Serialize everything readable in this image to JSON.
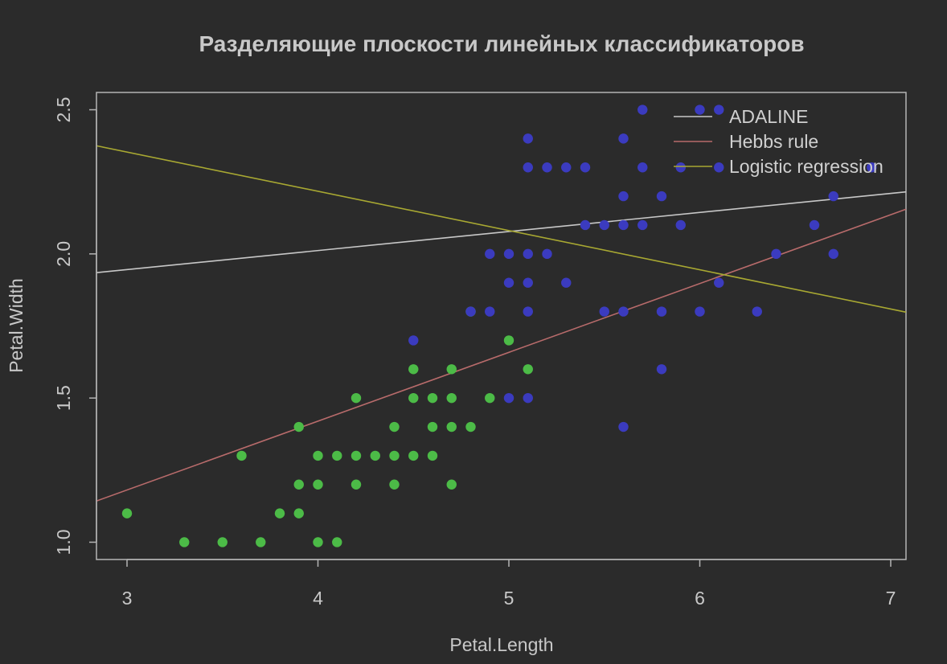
{
  "chart_data": {
    "type": "scatter",
    "title": "Разделяющие плоскости линейных классификаторов",
    "xlabel": "Petal.Length",
    "ylabel": "Petal.Width",
    "xlim": [
      2.84,
      7.08
    ],
    "ylim": [
      0.94,
      2.56
    ],
    "x_ticks": [
      "3",
      "4",
      "5",
      "6",
      "7"
    ],
    "y_ticks": [
      "1.0",
      "1.5",
      "2.0",
      "2.5"
    ],
    "grid": false,
    "legend_position": "top-right",
    "background": "#2b2b2b",
    "axis_color": "#b4b4b4",
    "series": [
      {
        "color": "#4cbb47",
        "points": [
          [
            3.0,
            1.1
          ],
          [
            3.3,
            1.0
          ],
          [
            3.5,
            1.0
          ],
          [
            3.6,
            1.3
          ],
          [
            3.7,
            1.0
          ],
          [
            3.8,
            1.1
          ],
          [
            3.9,
            1.4
          ],
          [
            3.9,
            1.2
          ],
          [
            3.9,
            1.1
          ],
          [
            4.0,
            1.3
          ],
          [
            4.0,
            1.2
          ],
          [
            4.0,
            1.0
          ],
          [
            4.1,
            1.3
          ],
          [
            4.1,
            1.0
          ],
          [
            4.2,
            1.5
          ],
          [
            4.2,
            1.3
          ],
          [
            4.2,
            1.2
          ],
          [
            4.3,
            1.3
          ],
          [
            4.4,
            1.4
          ],
          [
            4.4,
            1.3
          ],
          [
            4.4,
            1.2
          ],
          [
            4.5,
            1.6
          ],
          [
            4.5,
            1.5
          ],
          [
            4.5,
            1.3
          ],
          [
            4.6,
            1.5
          ],
          [
            4.6,
            1.4
          ],
          [
            4.6,
            1.3
          ],
          [
            4.7,
            1.6
          ],
          [
            4.7,
            1.5
          ],
          [
            4.7,
            1.4
          ],
          [
            4.7,
            1.2
          ],
          [
            4.8,
            1.8
          ],
          [
            4.8,
            1.4
          ],
          [
            4.9,
            1.5
          ],
          [
            5.0,
            1.7
          ],
          [
            5.1,
            1.6
          ]
        ]
      },
      {
        "color": "#3b3bbf",
        "points": [
          [
            4.5,
            1.7
          ],
          [
            4.8,
            1.8
          ],
          [
            4.9,
            2.0
          ],
          [
            4.9,
            1.8
          ],
          [
            5.0,
            2.0
          ],
          [
            5.0,
            1.9
          ],
          [
            5.0,
            1.5
          ],
          [
            5.1,
            2.4
          ],
          [
            5.1,
            2.3
          ],
          [
            5.1,
            2.0
          ],
          [
            5.1,
            1.9
          ],
          [
            5.1,
            1.8
          ],
          [
            5.1,
            1.5
          ],
          [
            5.2,
            2.3
          ],
          [
            5.2,
            2.0
          ],
          [
            5.3,
            2.3
          ],
          [
            5.3,
            1.9
          ],
          [
            5.4,
            2.3
          ],
          [
            5.4,
            2.1
          ],
          [
            5.5,
            2.1
          ],
          [
            5.5,
            1.8
          ],
          [
            5.6,
            2.4
          ],
          [
            5.6,
            2.2
          ],
          [
            5.6,
            2.1
          ],
          [
            5.6,
            1.8
          ],
          [
            5.6,
            1.4
          ],
          [
            5.7,
            2.5
          ],
          [
            5.7,
            2.3
          ],
          [
            5.7,
            2.1
          ],
          [
            5.8,
            2.2
          ],
          [
            5.8,
            1.8
          ],
          [
            5.8,
            1.6
          ],
          [
            5.9,
            2.3
          ],
          [
            5.9,
            2.1
          ],
          [
            6.0,
            2.5
          ],
          [
            6.0,
            1.8
          ],
          [
            6.1,
            2.5
          ],
          [
            6.1,
            2.3
          ],
          [
            6.1,
            1.9
          ],
          [
            6.3,
            1.8
          ],
          [
            6.4,
            2.0
          ],
          [
            6.6,
            2.1
          ],
          [
            6.7,
            2.2
          ],
          [
            6.7,
            2.0
          ],
          [
            6.9,
            2.3
          ]
        ]
      }
    ],
    "lines": [
      {
        "name": "ADALINE",
        "color": "#c8c8c8",
        "x": [
          2.84,
          7.08
        ],
        "y": [
          1.935,
          2.215
        ]
      },
      {
        "name": "Hebbs rule",
        "color": "#b86b6b",
        "x": [
          2.84,
          7.08
        ],
        "y": [
          1.143,
          2.155
        ]
      },
      {
        "name": "Logistic regression",
        "color": "#a8a832",
        "x": [
          2.84,
          7.08
        ],
        "y": [
          2.375,
          1.798
        ]
      }
    ]
  }
}
